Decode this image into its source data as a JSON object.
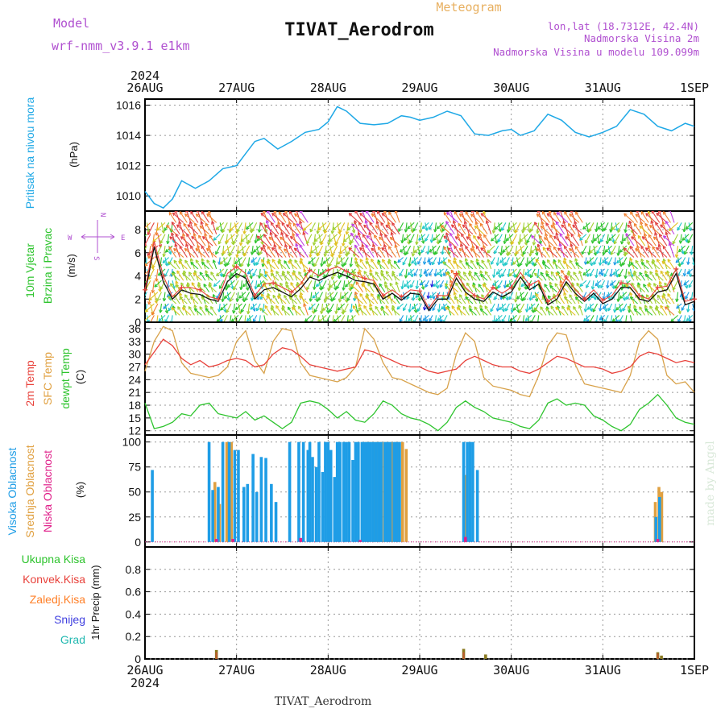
{
  "header": {
    "model_label": "Model",
    "model_value": "wrf-nmm_v3.9.1  e1km",
    "station_title": "TIVAT_Aerodrom",
    "meteogram_label": "Meteogram",
    "lonlat": "lon,lat (18.7312E, 42.4N)",
    "altitude": "Nadmorska Visina 2m",
    "model_altitude": "Nadmorska Visina u modelu 109.099m"
  },
  "footer": {
    "station": "TIVAT_Aerodrom"
  },
  "watermark": "made by Angel",
  "time_axis": {
    "year": "2024",
    "ticks": [
      "26AUG",
      "27AUG",
      "28AUG",
      "29AUG",
      "30AUG",
      "31AUG",
      "1SEP"
    ]
  },
  "panels": {
    "pressure": {
      "ylabel": "Pritisak na nivou mora",
      "unit": "(hPa)"
    },
    "wind": {
      "ylabel1": "10m Vjetar",
      "ylabel2": "Brzina i Pravac",
      "unit": "(m/s)",
      "compass": {
        "w": "W",
        "e": "E",
        "n": "N",
        "s": "S"
      }
    },
    "temperature": {
      "labels": [
        "2m Temp",
        "SFC Temp",
        "dewpt Temp"
      ],
      "unit": "(C)"
    },
    "clouds": {
      "labels": [
        "Visoka Oblacnost",
        "Srednja Oblacnost",
        "Niska Oblacnost"
      ],
      "unit": "(%)"
    },
    "precip": {
      "legend": [
        "Ukupna Kisa",
        "Konvek.Kisa",
        "Zaledj.Kisa",
        "Snijeg",
        "Grad"
      ],
      "ylabel": "1hr Precip (mm)"
    }
  },
  "colors": {
    "pressure": "#1ea8e6",
    "temp2m": "#e8413a",
    "sfc": "#d8a24a",
    "dewpt": "#2ec42e",
    "high_cloud": "#1e9de6",
    "mid_cloud": "#e0a040",
    "low_cloud": "#e0208a",
    "total_rain": "#2ec42e",
    "convective": "#e8413a",
    "freezing": "#ff7f27",
    "snow": "#4040e0",
    "hail": "#20b8b0",
    "title_purple": "#b050d0",
    "meteogram_orange": "#e8b060"
  },
  "chart_data": [
    {
      "type": "line",
      "title": "",
      "xlabel": "",
      "ylabel": "Pritisak na nivou mora (hPa)",
      "x_days": [
        0,
        0.1,
        0.2,
        0.3,
        0.4,
        0.55,
        0.7,
        0.85,
        1.0,
        1.1,
        1.2,
        1.3,
        1.45,
        1.6,
        1.75,
        1.9,
        2.0,
        2.1,
        2.2,
        2.35,
        2.5,
        2.65,
        2.8,
        2.9,
        3.0,
        3.15,
        3.3,
        3.45,
        3.6,
        3.75,
        3.9,
        4.0,
        4.1,
        4.25,
        4.4,
        4.55,
        4.7,
        4.85,
        5.0,
        5.15,
        5.3,
        5.45,
        5.6,
        5.75,
        5.9,
        6.0
      ],
      "y": [
        1010.3,
        1009.5,
        1009.2,
        1009.8,
        1011.0,
        1010.5,
        1011.0,
        1011.8,
        1012.0,
        1012.8,
        1013.6,
        1013.8,
        1013.1,
        1013.6,
        1014.2,
        1014.4,
        1014.9,
        1015.9,
        1015.6,
        1014.8,
        1014.7,
        1014.8,
        1015.3,
        1015.2,
        1015.0,
        1015.2,
        1015.6,
        1015.3,
        1014.1,
        1014.0,
        1014.3,
        1014.4,
        1014.0,
        1014.3,
        1015.4,
        1015.0,
        1014.2,
        1013.9,
        1014.2,
        1014.6,
        1015.7,
        1015.4,
        1014.6,
        1014.3,
        1014.8,
        1014.6
      ],
      "xlim": [
        0,
        6
      ],
      "ylim": [
        1009,
        1016.4
      ],
      "yticks": [
        1010,
        1012,
        1014,
        1016
      ],
      "grid": true
    },
    {
      "type": "line",
      "title": "",
      "xlabel": "",
      "ylabel": "10m Vjetar Brzina i Pravac (m/s)",
      "x_days": [
        0,
        0.1,
        0.2,
        0.3,
        0.4,
        0.5,
        0.6,
        0.7,
        0.8,
        0.9,
        1.0,
        1.1,
        1.2,
        1.3,
        1.4,
        1.5,
        1.6,
        1.7,
        1.8,
        1.9,
        2.0,
        2.1,
        2.2,
        2.3,
        2.4,
        2.5,
        2.6,
        2.7,
        2.8,
        2.9,
        3.0,
        3.1,
        3.2,
        3.3,
        3.4,
        3.5,
        3.6,
        3.7,
        3.8,
        3.9,
        4.0,
        4.1,
        4.2,
        4.3,
        4.4,
        4.5,
        4.6,
        4.7,
        4.8,
        4.9,
        5.0,
        5.1,
        5.2,
        5.3,
        5.4,
        5.5,
        5.6,
        5.7,
        5.8,
        5.9,
        6.0
      ],
      "series": [
        {
          "values": [
            2.5,
            6.5,
            3.5,
            2.0,
            2.8,
            2.5,
            2.4,
            2.0,
            1.8,
            3.5,
            4.2,
            3.8,
            2.0,
            2.8,
            3.0,
            2.6,
            2.2,
            2.9,
            3.9,
            3.6,
            4.0,
            4.3,
            4.0,
            3.6,
            3.5,
            3.3,
            2.0,
            2.5,
            1.9,
            2.5,
            2.4,
            1.0,
            2.0,
            2.0,
            3.8,
            2.6,
            2.0,
            1.8,
            2.6,
            2.2,
            2.6,
            3.9,
            2.8,
            3.3,
            1.5,
            2.0,
            3.5,
            2.5,
            1.8,
            2.5,
            1.6,
            2.0,
            3.0,
            3.0,
            2.0,
            1.8,
            2.6,
            2.8,
            4.2,
            1.5,
            1.8
          ]
        },
        {
          "values": [
            2.8,
            7.0,
            4.0,
            2.2,
            3.0,
            3.0,
            2.8,
            2.2,
            2.0,
            4.2,
            4.8,
            4.2,
            2.3,
            3.3,
            3.4,
            3.0,
            2.6,
            3.3,
            4.5,
            4.0,
            4.5,
            4.8,
            4.4,
            4.0,
            3.8,
            3.6,
            2.3,
            2.8,
            2.2,
            2.8,
            2.7,
            1.2,
            2.3,
            2.3,
            4.2,
            3.0,
            2.3,
            2.0,
            3.0,
            2.5,
            3.0,
            4.3,
            3.2,
            3.6,
            1.8,
            2.3,
            3.9,
            2.8,
            2.0,
            2.8,
            1.9,
            2.3,
            3.4,
            3.3,
            2.3,
            2.0,
            3.0,
            3.1,
            4.6,
            1.8,
            2.0
          ]
        }
      ],
      "xlim": [
        0,
        6
      ],
      "ylim": [
        0,
        9.6
      ],
      "yticks": [
        0,
        2,
        4,
        6,
        8
      ],
      "grid": true
    },
    {
      "type": "line",
      "title": "",
      "xlabel": "",
      "ylabel": "(C)",
      "x_days": [
        0,
        0.1,
        0.2,
        0.3,
        0.4,
        0.5,
        0.6,
        0.7,
        0.8,
        0.9,
        1.0,
        1.1,
        1.2,
        1.3,
        1.4,
        1.5,
        1.6,
        1.7,
        1.8,
        1.9,
        2.0,
        2.1,
        2.2,
        2.3,
        2.4,
        2.5,
        2.6,
        2.7,
        2.8,
        2.9,
        3.0,
        3.1,
        3.2,
        3.3,
        3.4,
        3.5,
        3.6,
        3.7,
        3.8,
        3.9,
        4.0,
        4.1,
        4.2,
        4.3,
        4.4,
        4.5,
        4.6,
        4.7,
        4.8,
        4.9,
        5.0,
        5.1,
        5.2,
        5.3,
        5.4,
        5.5,
        5.6,
        5.7,
        5.8,
        5.9,
        6.0
      ],
      "series": [
        {
          "name": "2m Temp",
          "values": [
            27.5,
            30.5,
            33.5,
            32.0,
            29.0,
            27.5,
            28.5,
            27.0,
            27.5,
            28.5,
            29.0,
            28.5,
            27.0,
            27.5,
            30.0,
            31.5,
            31.0,
            29.5,
            27.5,
            27.0,
            26.5,
            26.0,
            26.5,
            27.0,
            31.0,
            30.5,
            29.5,
            28.5,
            27.5,
            27.0,
            27.0,
            26.0,
            25.5,
            26.0,
            26.5,
            28.5,
            29.5,
            28.5,
            27.5,
            27.0,
            27.0,
            26.0,
            25.5,
            26.5,
            28.0,
            29.5,
            29.0,
            28.0,
            27.0,
            27.0,
            26.5,
            25.5,
            26.0,
            27.0,
            29.5,
            30.5,
            30.0,
            29.0,
            28.0,
            28.5,
            28.0
          ]
        },
        {
          "name": "SFC Temp",
          "values": [
            26.0,
            33.0,
            36.5,
            35.5,
            28.0,
            25.5,
            25.0,
            24.5,
            25.0,
            27.0,
            33.0,
            35.5,
            28.5,
            25.5,
            33.0,
            36.0,
            35.5,
            28.0,
            25.0,
            24.5,
            24.0,
            23.5,
            24.5,
            27.0,
            36.0,
            33.5,
            28.0,
            24.5,
            24.0,
            23.0,
            22.0,
            21.0,
            20.5,
            22.0,
            30.0,
            35.0,
            33.0,
            24.5,
            22.5,
            22.0,
            21.5,
            20.5,
            20.0,
            25.0,
            32.0,
            35.0,
            34.5,
            27.5,
            23.0,
            22.5,
            22.0,
            21.5,
            21.0,
            25.0,
            33.0,
            35.5,
            33.5,
            25.0,
            23.0,
            23.5,
            21.0
          ]
        },
        {
          "name": "dewpt Temp",
          "values": [
            18.5,
            12.5,
            13.0,
            14.0,
            16.0,
            15.5,
            18.0,
            18.5,
            16.0,
            15.5,
            15.0,
            16.5,
            14.5,
            15.5,
            14.0,
            12.5,
            14.0,
            18.5,
            19.0,
            18.5,
            17.0,
            15.0,
            16.5,
            14.5,
            14.0,
            16.0,
            19.0,
            18.0,
            16.0,
            15.0,
            14.5,
            13.5,
            12.0,
            14.0,
            17.5,
            19.0,
            17.5,
            16.5,
            15.0,
            14.5,
            14.0,
            13.0,
            12.5,
            14.5,
            18.5,
            19.5,
            18.0,
            18.5,
            18.0,
            15.5,
            14.5,
            13.0,
            12.0,
            13.5,
            17.0,
            18.5,
            20.5,
            18.0,
            15.0,
            14.0,
            13.5
          ]
        }
      ],
      "xlim": [
        0,
        6
      ],
      "ylim": [
        11,
        37.5
      ],
      "yticks": [
        12,
        15,
        18,
        21,
        24,
        27,
        30,
        33,
        36
      ],
      "grid": true
    },
    {
      "type": "bar",
      "title": "",
      "xlabel": "",
      "ylabel": "(%)",
      "series": [
        {
          "name": "Visoka Oblacnost",
          "x_days": [
            0.08,
            0.7,
            0.74,
            0.8,
            0.85,
            0.92,
            0.98,
            1.02,
            1.08,
            1.12,
            1.18,
            1.22,
            1.27,
            1.32,
            1.38,
            1.43,
            1.58,
            1.68,
            1.73,
            1.78,
            1.8,
            1.83,
            1.87,
            1.9,
            1.94,
            1.97,
            2.0,
            2.03,
            2.07,
            2.1,
            2.13,
            2.17,
            2.2,
            2.23,
            2.27,
            2.3,
            2.33,
            2.37,
            2.4,
            2.43,
            2.46,
            2.49,
            2.52,
            2.55,
            2.58,
            2.62,
            2.65,
            2.68,
            2.72,
            2.75,
            2.78,
            3.48,
            3.52,
            3.55,
            3.58,
            3.63,
            5.58,
            5.62
          ],
          "values": [
            72,
            100,
            52,
            55,
            100,
            100,
            92,
            92,
            55,
            58,
            88,
            50,
            85,
            84,
            58,
            40,
            100,
            100,
            100,
            92,
            100,
            85,
            75,
            100,
            70,
            100,
            100,
            92,
            65,
            100,
            100,
            100,
            100,
            100,
            82,
            100,
            100,
            100,
            100,
            100,
            100,
            100,
            100,
            100,
            100,
            100,
            100,
            100,
            100,
            100,
            100,
            100,
            100,
            100,
            100,
            72,
            25,
            45
          ]
        },
        {
          "name": "Srednja Oblacnost",
          "x_days": [
            0.75,
            0.8,
            0.88,
            0.93,
            2.4,
            2.44,
            2.48,
            2.52,
            2.56,
            2.6,
            2.64,
            2.68,
            2.72,
            2.76,
            2.8,
            2.84,
            3.48,
            5.56,
            5.6,
            5.63
          ],
          "values": [
            60,
            38,
            100,
            100,
            100,
            100,
            100,
            100,
            100,
            100,
            100,
            100,
            100,
            100,
            100,
            93,
            67,
            40,
            55,
            50
          ]
        },
        {
          "name": "Niska Oblacnost",
          "x_days": [
            0.78,
            0.96,
            1.7,
            2.35,
            3.5,
            5.6
          ],
          "values": [
            3,
            3,
            4,
            2,
            5,
            3
          ]
        }
      ],
      "xlim": [
        0,
        6
      ],
      "ylim": [
        -5,
        107
      ],
      "yticks": [
        0,
        25,
        50,
        75,
        100
      ],
      "grid": true
    },
    {
      "type": "bar",
      "title": "",
      "xlabel": "",
      "ylabel": "1hr Precip (mm)",
      "series": [
        {
          "name": "Ukupna Kisa",
          "x_days": [
            0.78,
            3.48,
            3.72,
            5.6,
            5.64
          ],
          "values": [
            0.08,
            0.09,
            0.04,
            0.06,
            0.03
          ]
        },
        {
          "name": "Konvek.Kisa",
          "x_days": [
            0.78,
            3.48,
            5.6
          ],
          "values": [
            0.06,
            0.06,
            0.05
          ]
        },
        {
          "name": "Zaledj.Kisa",
          "x_days": [],
          "values": []
        },
        {
          "name": "Snijeg",
          "x_days": [],
          "values": []
        },
        {
          "name": "Grad",
          "x_days": [],
          "values": []
        }
      ],
      "xlim": [
        0,
        6
      ],
      "ylim": [
        0,
        1.0
      ],
      "yticks": [
        0,
        0.2,
        0.4,
        0.6,
        0.8
      ],
      "grid": true
    }
  ]
}
